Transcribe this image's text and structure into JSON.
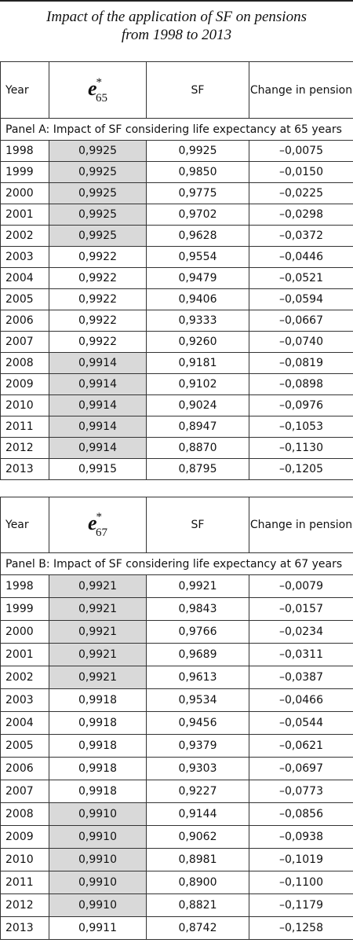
{
  "title": [
    "Impact of the application of SF on pensions",
    "from 1998 to 2013"
  ],
  "panel_a": {
    "header": {
      "year": "Year",
      "e": {
        "symbol": "e",
        "sup": "*",
        "sub": "65"
      },
      "sf": "SF",
      "change": "Change in pension"
    },
    "panel_title": "Panel A: Impact of SF considering life expectancy at 65 years",
    "rows": [
      [
        "1998",
        "0,9925",
        "0,9925",
        "–0,0075"
      ],
      [
        "1999",
        "0,9925",
        "0,9850",
        "–0,0150"
      ],
      [
        "2000",
        "0,9925",
        "0,9775",
        "–0,0225"
      ],
      [
        "2001",
        "0,9925",
        "0,9702",
        "–0,0298"
      ],
      [
        "2002",
        "0,9925",
        "0,9628",
        "–0,0372"
      ],
      [
        "2003",
        "0,9922",
        "0,9554",
        "–0,0446"
      ],
      [
        "2004",
        "0,9922",
        "0,9479",
        "–0,0521"
      ],
      [
        "2005",
        "0,9922",
        "0,9406",
        "–0,0594"
      ],
      [
        "2006",
        "0,9922",
        "0,9333",
        "–0,0667"
      ],
      [
        "2007",
        "0,9922",
        "0,9260",
        "–0,0740"
      ],
      [
        "2008",
        "0,9914",
        "0,9181",
        "–0,0819"
      ],
      [
        "2009",
        "0,9914",
        "0,9102",
        "–0,0898"
      ],
      [
        "2010",
        "0,9914",
        "0,9024",
        "–0,0976"
      ],
      [
        "2011",
        "0,9914",
        "0,8947",
        "–0,1053"
      ],
      [
        "2012",
        "0,9914",
        "0,8870",
        "–0,1130"
      ],
      [
        "2013",
        "0,9915",
        "0,8795",
        "–0,1205"
      ]
    ]
  },
  "panel_b": {
    "header": {
      "year": "Year",
      "e": {
        "symbol": "e",
        "sup": "*",
        "sub": "67"
      },
      "sf": "SF",
      "change": "Change in pension"
    },
    "panel_title": "Panel B: Impact of SF considering life expectancy at 67 years",
    "rows": [
      [
        "1998",
        "0,9921",
        "0,9921",
        "–0,0079"
      ],
      [
        "1999",
        "0,9921",
        "0,9843",
        "–0,0157"
      ],
      [
        "2000",
        "0,9921",
        "0,9766",
        "–0,0234"
      ],
      [
        "2001",
        "0,9921",
        "0,9689",
        "–0,0311"
      ],
      [
        "2002",
        "0,9921",
        "0,9613",
        "–0,0387"
      ],
      [
        "2003",
        "0,9918",
        "0,9534",
        "–0,0466"
      ],
      [
        "2004",
        "0,9918",
        "0,9456",
        "–0,0544"
      ],
      [
        "2005",
        "0,9918",
        "0,9379",
        "–0,0621"
      ],
      [
        "2006",
        "0,9918",
        "0,9303",
        "–0,0697"
      ],
      [
        "2007",
        "0,9918",
        "0,9227",
        "–0,0773"
      ],
      [
        "2008",
        "0,9910",
        "0,9144",
        "–0,0856"
      ],
      [
        "2009",
        "0,9910",
        "0,9062",
        "–0,0938"
      ],
      [
        "2010",
        "0,9910",
        "0,8981",
        "–0,1019"
      ],
      [
        "2011",
        "0,9910",
        "0,8900",
        "–0,1100"
      ],
      [
        "2012",
        "0,9910",
        "0,8821",
        "–0,1179"
      ],
      [
        "2013",
        "0,9911",
        "0,8742",
        "–0,1258"
      ]
    ]
  }
}
